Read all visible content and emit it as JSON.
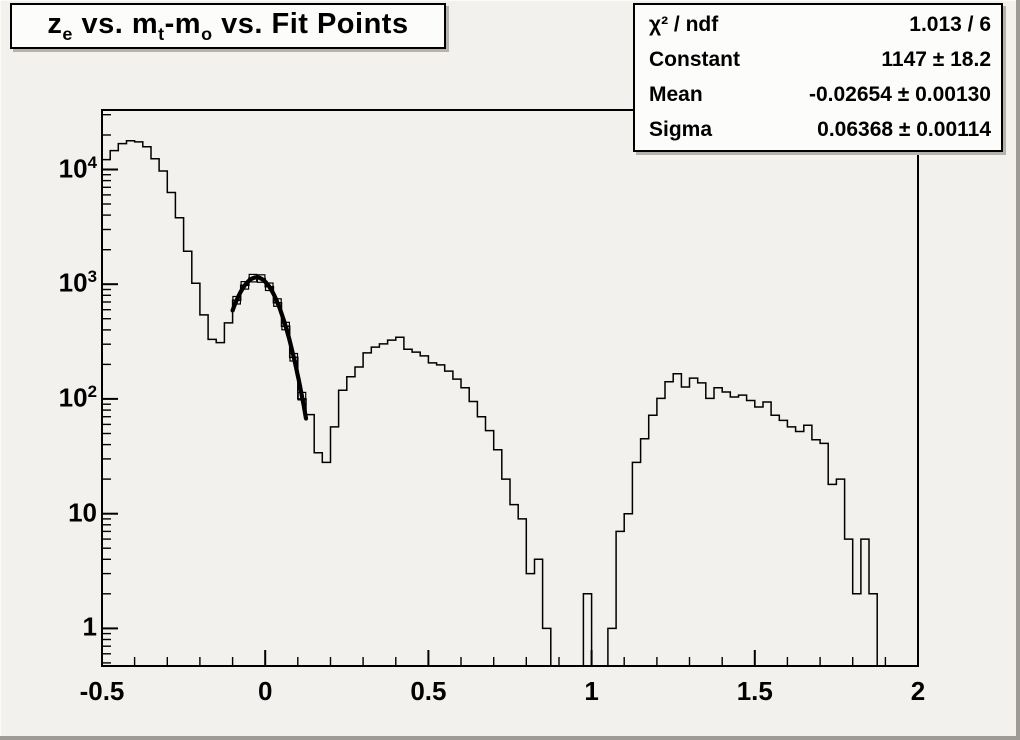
{
  "title": {
    "plain": "z_e vs. m_t-m_o vs. Fit Points",
    "parts": [
      {
        "text": "z"
      },
      {
        "text": "e",
        "style": "sub"
      },
      {
        "text": " vs. m"
      },
      {
        "text": "t",
        "style": "sub"
      },
      {
        "text": "-m"
      },
      {
        "text": "o",
        "style": "sub"
      },
      {
        "text": " vs. Fit Points"
      }
    ]
  },
  "stats": {
    "rows": [
      {
        "label": "χ² / ndf",
        "value": "1.013 / 6"
      },
      {
        "label": "Constant",
        "value": "1147 ± 18.2"
      },
      {
        "label": "Mean",
        "value": "-0.02654 ± 0.00130"
      },
      {
        "label": "Sigma",
        "value": "0.06368 ± 0.00114"
      }
    ]
  },
  "chart_data": {
    "type": "bar",
    "subtype": "step-histogram-log-y",
    "title": "z_e vs. m_t-m_o vs. Fit Points",
    "xlabel": "",
    "ylabel": "",
    "x_range": [
      -0.5,
      2.0
    ],
    "y_scale": "log",
    "y_range": [
      0.47,
      33000
    ],
    "grid": false,
    "bin_start": -0.5,
    "bin_width": 0.025,
    "bins": [
      12200,
      14600,
      16800,
      17800,
      17400,
      15800,
      12400,
      9700,
      6300,
      3800,
      1940,
      1020,
      540,
      330,
      310,
      460,
      725,
      980,
      1130,
      1120,
      950,
      690,
      430,
      230,
      100,
      73,
      34,
      28,
      57,
      119,
      156,
      190,
      252,
      283,
      302,
      326,
      345,
      271,
      256,
      237,
      206,
      198,
      175,
      149,
      125,
      95,
      70,
      53,
      36,
      20,
      12,
      9,
      3,
      4,
      1,
      0,
      0,
      0,
      0,
      2,
      0,
      0,
      1,
      7,
      10,
      28,
      45,
      72,
      101,
      141,
      166,
      127,
      152,
      138,
      101,
      125,
      115,
      104,
      108,
      97,
      85,
      94,
      72,
      65,
      57,
      52,
      59,
      44,
      41,
      18,
      20,
      6,
      2,
      6,
      2,
      0,
      0,
      0,
      0,
      0
    ],
    "fit": {
      "type": "gaussian",
      "constant": 1147,
      "mean": -0.02654,
      "sigma": 0.06368,
      "chi2": 1.013,
      "ndf": 6,
      "range": [
        -0.1,
        0.125
      ],
      "marker": "open-square",
      "points_x_start": -0.0875,
      "points_step": 0.025,
      "points_count": 9
    },
    "x_ticks": [
      {
        "label": "-0.5",
        "value": -0.5
      },
      {
        "label": "0",
        "value": 0
      },
      {
        "label": "0.5",
        "value": 0.5
      },
      {
        "label": "1",
        "value": 1
      },
      {
        "label": "1.5",
        "value": 1.5
      },
      {
        "label": "2",
        "value": 2
      }
    ],
    "x_minor_step": 0.1,
    "y_ticks": [
      {
        "label": "1",
        "value": 1
      },
      {
        "label": "10",
        "value": 10
      },
      {
        "label": "10",
        "exp": "2",
        "value": 100
      },
      {
        "label": "10",
        "exp": "3",
        "value": 1000
      },
      {
        "label": "10",
        "exp": "4",
        "value": 10000
      }
    ],
    "colors": {
      "line": "#000000",
      "fit_line": "#000000",
      "background": "#f3f1ee",
      "pave_fill": "#fcfcfb"
    }
  }
}
